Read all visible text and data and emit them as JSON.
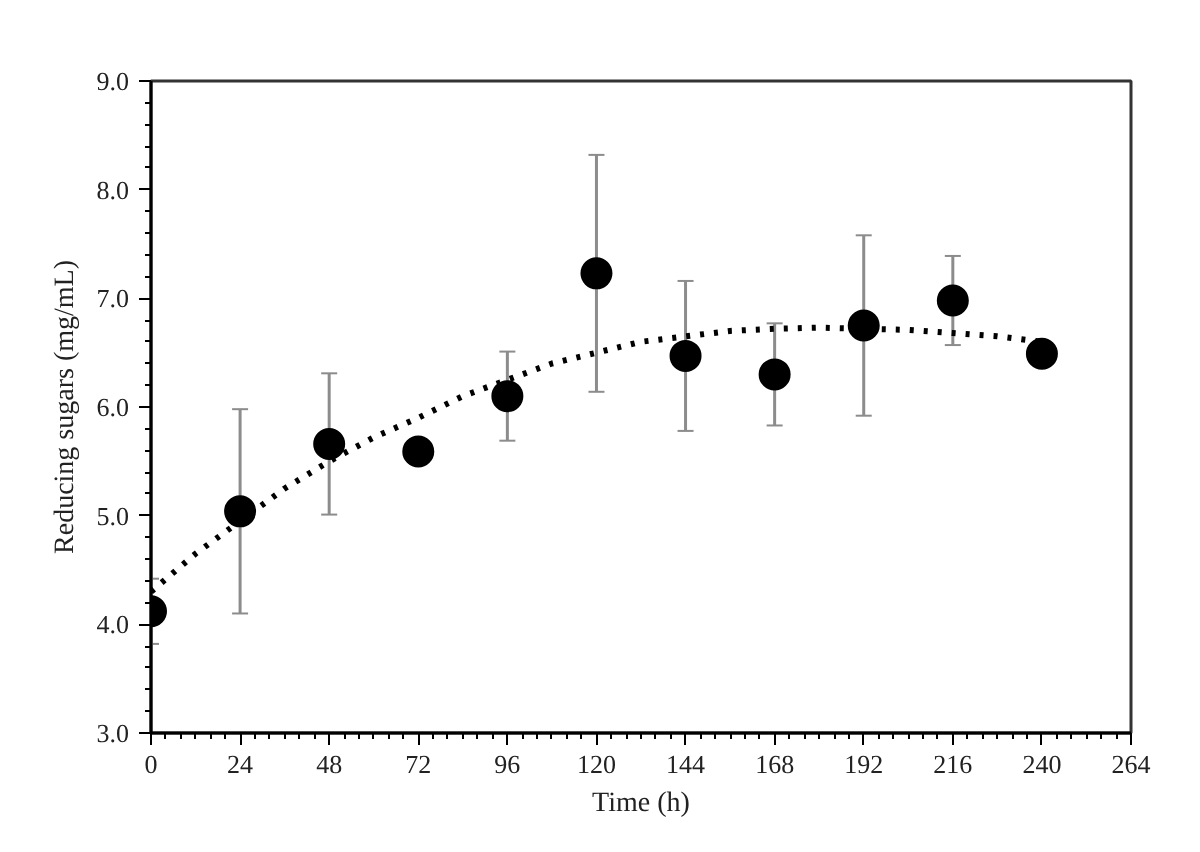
{
  "chart_data": {
    "type": "scatter",
    "xlabel": "Time (h)",
    "ylabel": "Reducing sugars (mg/mL)",
    "x": [
      0,
      24,
      48,
      72,
      96,
      120,
      144,
      168,
      192,
      216,
      240
    ],
    "series": [
      {
        "color": "#000000",
        "marker": "circle",
        "values": [
          4.12,
          5.04,
          5.66,
          5.59,
          6.1,
          7.23,
          6.47,
          6.3,
          6.75,
          6.98,
          6.49
        ],
        "errors": [
          0.3,
          0.94,
          0.65,
          null,
          0.41,
          1.09,
          0.69,
          0.47,
          0.83,
          0.41,
          null
        ]
      },
      {
        "type": "line",
        "color": "#000000",
        "line_style": "dotted",
        "x": [
          0,
          12,
          24,
          36,
          48,
          60,
          72,
          84,
          96,
          108,
          120,
          132,
          144,
          156,
          168,
          180,
          192,
          204,
          216,
          228,
          240
        ],
        "values": [
          4.3,
          4.65,
          4.95,
          5.25,
          5.5,
          5.72,
          5.9,
          6.1,
          6.25,
          6.4,
          6.5,
          6.6,
          6.65,
          6.7,
          6.72,
          6.73,
          6.72,
          6.71,
          6.68,
          6.65,
          6.6
        ]
      }
    ],
    "xlim": [
      0,
      264
    ],
    "xticks": [
      0,
      24,
      48,
      72,
      96,
      120,
      144,
      168,
      192,
      216,
      240,
      264
    ],
    "ylim": [
      3.0,
      9.0
    ],
    "yticks": [
      {
        "value": 3,
        "label": "3.0"
      },
      {
        "value": 4,
        "label": "4.0"
      },
      {
        "value": 5,
        "label": "5.0"
      },
      {
        "value": 6,
        "label": "6.0"
      },
      {
        "value": 7,
        "label": "7.0"
      },
      {
        "value": 8,
        "label": "8.0"
      },
      {
        "value": 9,
        "label": "9.0"
      }
    ],
    "grid": false
  }
}
